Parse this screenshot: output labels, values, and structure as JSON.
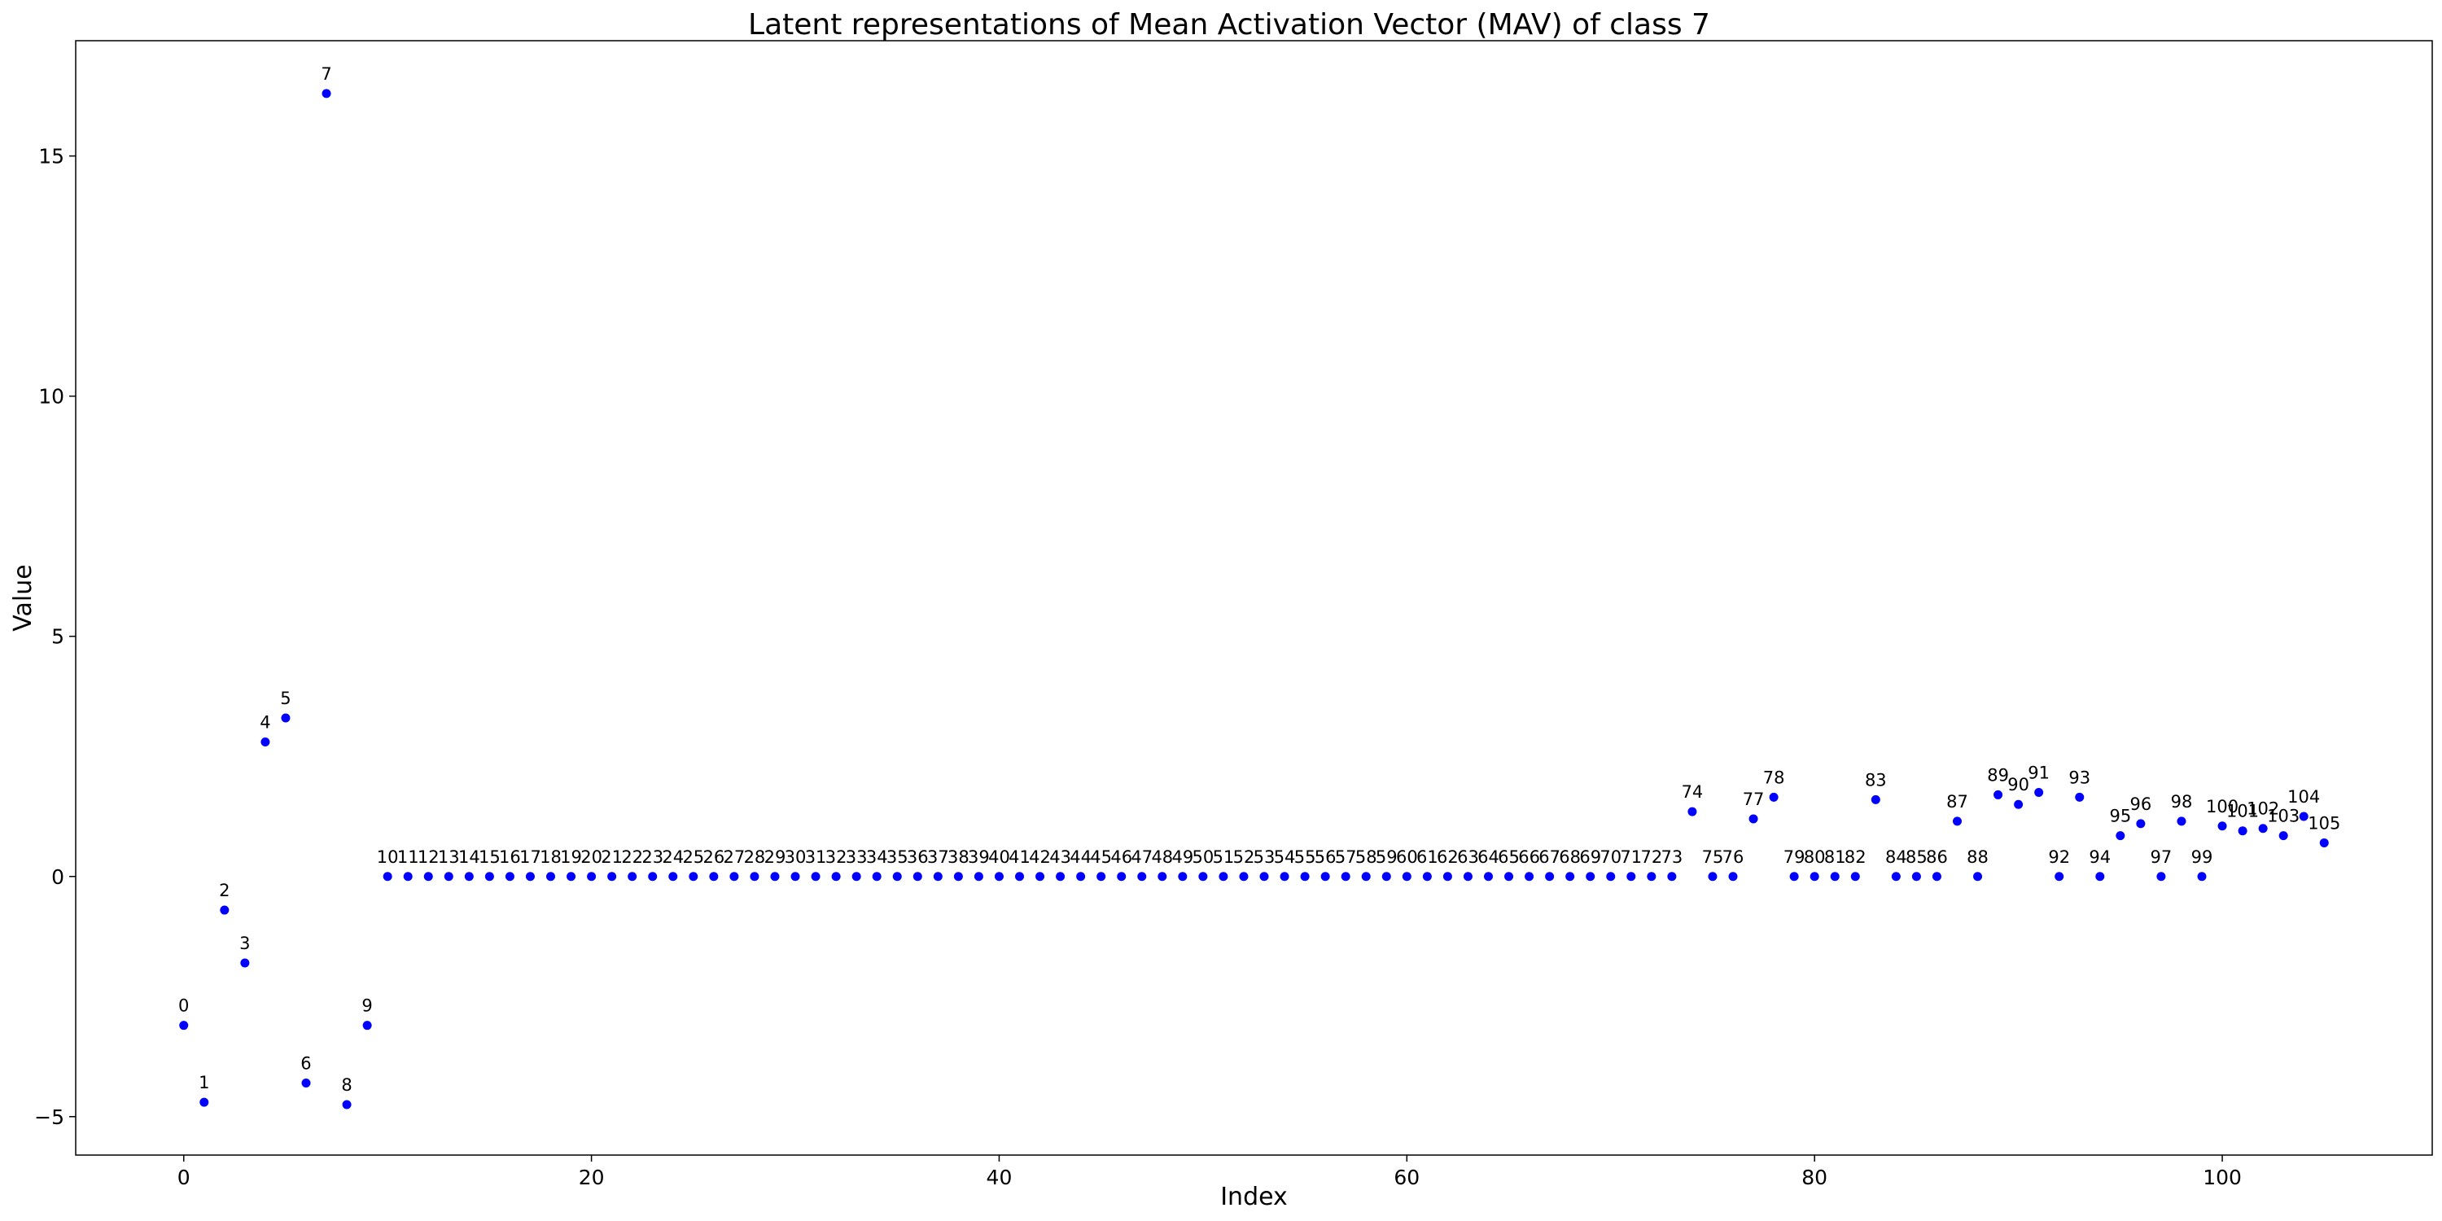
{
  "chart_data": {
    "type": "scatter",
    "title": "Latent representations of Mean Activation Vector (MAV) of class 7",
    "xlabel": "Index",
    "ylabel": "Value",
    "xlim": [
      -5.3,
      110.3
    ],
    "ylim": [
      -5.8,
      17.4
    ],
    "xticks": [
      0,
      20,
      40,
      60,
      80,
      100
    ],
    "yticks": [
      -5,
      0,
      5,
      10,
      15
    ],
    "grid": false,
    "point_color": "#0000ff",
    "x": [
      0,
      1,
      2,
      3,
      4,
      5,
      6,
      7,
      8,
      9,
      10,
      11,
      12,
      13,
      14,
      15,
      16,
      17,
      18,
      19,
      20,
      21,
      22,
      23,
      24,
      25,
      26,
      27,
      28,
      29,
      30,
      31,
      32,
      33,
      34,
      35,
      36,
      37,
      38,
      39,
      40,
      41,
      42,
      43,
      44,
      45,
      46,
      47,
      48,
      49,
      50,
      51,
      52,
      53,
      54,
      55,
      56,
      57,
      58,
      59,
      60,
      61,
      62,
      63,
      64,
      65,
      66,
      67,
      68,
      69,
      70,
      71,
      72,
      73,
      74,
      75,
      76,
      77,
      78,
      79,
      80,
      81,
      82,
      83,
      84,
      85,
      86,
      87,
      88,
      89,
      90,
      91,
      92,
      93,
      94,
      95,
      96,
      97,
      98,
      99,
      100,
      101,
      102,
      103,
      104,
      105
    ],
    "y": [
      -3.1,
      -4.7,
      -0.7,
      -1.8,
      2.8,
      3.3,
      -4.3,
      16.3,
      -4.75,
      -3.1,
      0,
      0,
      0,
      0,
      0,
      0,
      0,
      0,
      0,
      0,
      0,
      0,
      0,
      0,
      0,
      0,
      0,
      0,
      0,
      0,
      0,
      0,
      0,
      0,
      0,
      0,
      0,
      0,
      0,
      0,
      0,
      0,
      0,
      0,
      0,
      0,
      0,
      0,
      0,
      0,
      0,
      0,
      0,
      0,
      0,
      0,
      0,
      0,
      0,
      0,
      0,
      0,
      0,
      0,
      0,
      0,
      0,
      0,
      0,
      0,
      0,
      0,
      0,
      0,
      1.35,
      0,
      0,
      1.2,
      1.65,
      0,
      0,
      0,
      0,
      1.6,
      0,
      0,
      0,
      1.15,
      0,
      1.7,
      1.5,
      1.75,
      0,
      1.65,
      0,
      0.85,
      1.1,
      0,
      1.15,
      0,
      1.05,
      0.95,
      1.0,
      0.85,
      1.25,
      0.7
    ],
    "point_labels": [
      "0",
      "1",
      "2",
      "3",
      "4",
      "5",
      "6",
      "7",
      "8",
      "9",
      "10",
      "11",
      "12",
      "13",
      "14",
      "15",
      "16",
      "17",
      "18",
      "19",
      "20",
      "21",
      "22",
      "23",
      "24",
      "25",
      "26",
      "27",
      "28",
      "29",
      "30",
      "31",
      "32",
      "33",
      "34",
      "35",
      "36",
      "37",
      "38",
      "39",
      "40",
      "41",
      "42",
      "43",
      "44",
      "45",
      "46",
      "47",
      "48",
      "49",
      "50",
      "51",
      "52",
      "53",
      "54",
      "55",
      "56",
      "57",
      "58",
      "59",
      "60",
      "61",
      "62",
      "63",
      "64",
      "65",
      "66",
      "67",
      "68",
      "69",
      "70",
      "71",
      "72",
      "73",
      "74",
      "75",
      "76",
      "77",
      "78",
      "79",
      "80",
      "81",
      "82",
      "83",
      "84",
      "85",
      "86",
      "87",
      "88",
      "89",
      "90",
      "91",
      "92",
      "93",
      "94",
      "95",
      "96",
      "97",
      "98",
      "99",
      "100",
      "101",
      "102",
      "103",
      "104",
      "105"
    ]
  }
}
